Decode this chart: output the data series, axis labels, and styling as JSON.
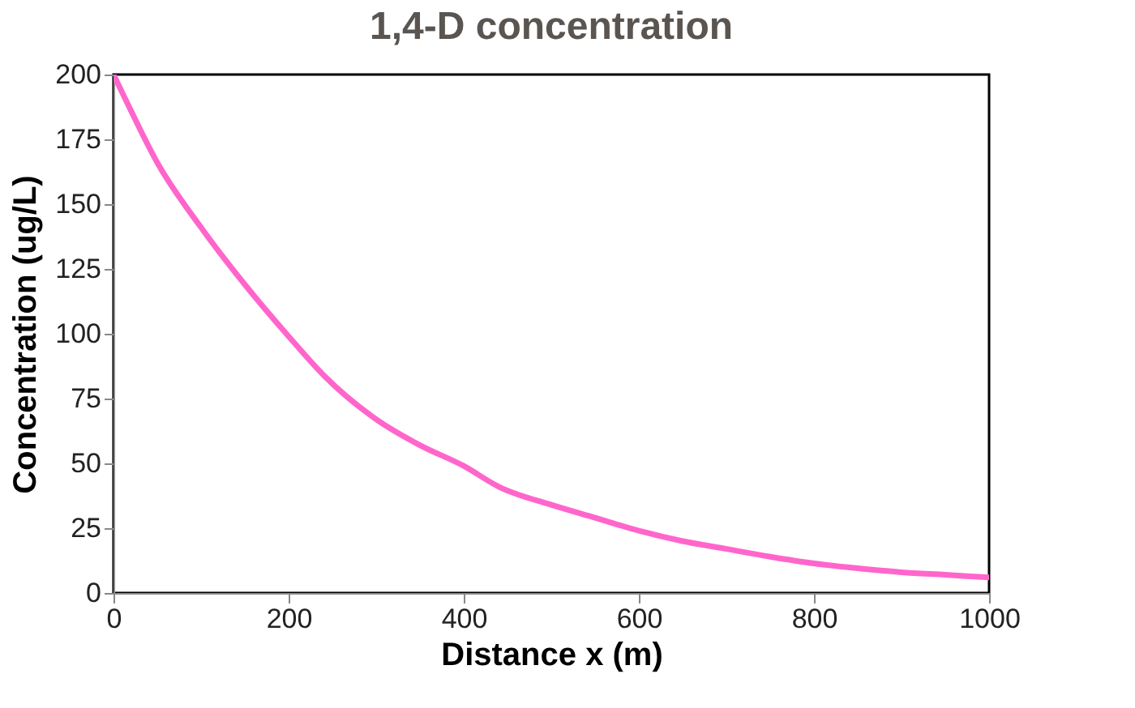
{
  "chart_data": {
    "type": "line",
    "title": "1,4-D concentration",
    "xlabel": "Distance x (m)",
    "ylabel": "Concentration (ug/L)",
    "x": [
      0,
      20,
      50,
      100,
      150,
      200,
      240,
      300,
      350,
      400,
      440,
      500,
      550,
      600,
      650,
      700,
      750,
      800,
      850,
      900,
      950,
      1000
    ],
    "series": [
      {
        "color": "#ff66cc",
        "values": [
          200,
          186,
          166,
          141,
          119,
          99,
          84,
          67,
          57,
          49,
          41,
          34,
          29,
          24,
          20,
          17,
          14,
          11.4,
          9.5,
          8,
          7,
          6
        ]
      }
    ],
    "xlim": [
      0,
      1000
    ],
    "ylim": [
      0,
      200
    ],
    "xticks": [
      0,
      200,
      400,
      600,
      800,
      1000
    ],
    "yticks": [
      0,
      25,
      50,
      75,
      100,
      125,
      150,
      175,
      200
    ],
    "grid": false,
    "legend": false,
    "marker": "none",
    "line_style": "solid"
  }
}
